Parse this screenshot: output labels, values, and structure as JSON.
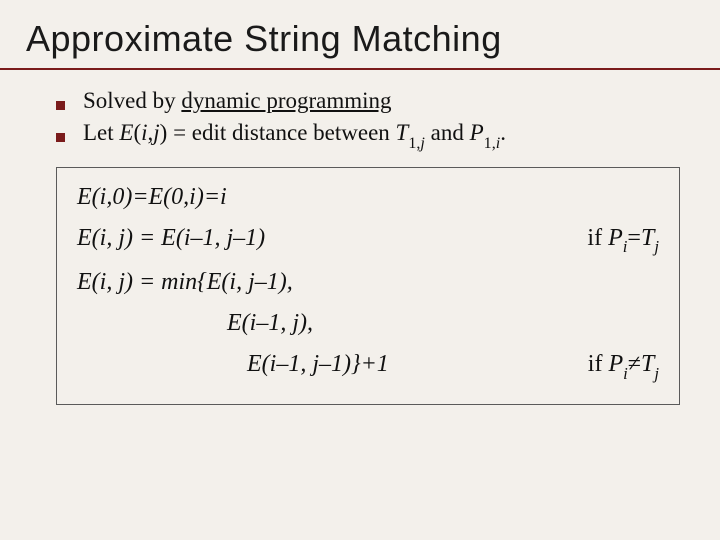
{
  "slide": {
    "title": "Approximate String Matching",
    "title_fontsize": 36,
    "title_font": "Trebuchet MS",
    "underline_color": "#7a1b1b",
    "background_color": "#f3f0eb",
    "bullets": [
      {
        "prefix": "Solved by ",
        "underlined": "dynamic programming",
        "suffix": ""
      },
      {
        "text_parts": [
          "Let ",
          "E",
          "(",
          "i",
          ",",
          "j",
          ") = edit distance between ",
          "T",
          "1,",
          "j",
          " and ",
          "P",
          "1,",
          "i",
          "."
        ]
      }
    ],
    "bullet_marker_color": "#7a1b1b",
    "bullet_fontsize": 23,
    "box": {
      "border_color": "#5a5a5a",
      "fontsize": 24,
      "lines": {
        "l1": "E(i,0)=E(0,i)=i",
        "l2_left": "E(i, j) = E(i–1, j–1)",
        "l2_right_prefix": "if  ",
        "l2_right_p": "P",
        "l2_right_i": "i",
        "l2_right_eq": "=",
        "l2_right_t": "T",
        "l2_right_j": "j",
        "l3": "E(i, j) = min{E(i, j–1),",
        "l4": "E(i–1, j),",
        "l5_left": "E(i–1, j–1)}+1",
        "l5_right_prefix": "if ",
        "l5_right_p": "P",
        "l5_right_i": "i",
        "l5_right_neq": "≠",
        "l5_right_t": "T",
        "l5_right_j": "j"
      }
    }
  }
}
